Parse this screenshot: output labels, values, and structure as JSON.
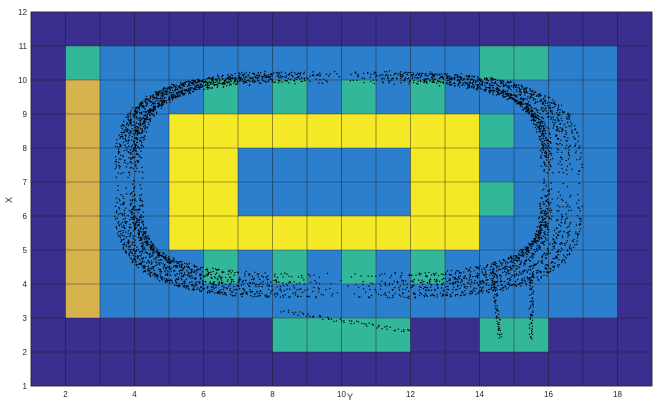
{
  "chart_data": {
    "type": "heatmap",
    "title": "",
    "xlabel": "Y",
    "ylabel": "X",
    "xlim": [
      1,
      19
    ],
    "ylim": [
      1,
      12
    ],
    "x_ticks": [
      "2",
      "4",
      "6",
      "8",
      "10",
      "12",
      "14",
      "16",
      "18"
    ],
    "y_ticks": [
      "1",
      "2",
      "3",
      "4",
      "5",
      "6",
      "7",
      "8",
      "9",
      "10",
      "11",
      "12"
    ],
    "grid": true,
    "palette": {
      "0": "#3a2f8e",
      "1": "#2c7fcd",
      "2": "#33b79a",
      "3": "#d7b34e",
      "4": "#f5e826"
    },
    "grid_levels": [
      [
        0,
        0,
        0,
        0,
        0,
        0,
        0,
        0,
        0,
        0,
        0,
        0,
        0,
        0,
        0,
        0,
        0,
        0
      ],
      [
        0,
        2,
        1,
        1,
        1,
        1,
        1,
        1,
        1,
        1,
        1,
        1,
        1,
        2,
        2,
        1,
        1,
        0
      ],
      [
        0,
        3,
        1,
        1,
        1,
        2,
        1,
        2,
        1,
        2,
        1,
        2,
        1,
        1,
        1,
        1,
        1,
        0
      ],
      [
        0,
        3,
        1,
        1,
        4,
        4,
        4,
        4,
        4,
        4,
        4,
        4,
        4,
        2,
        1,
        1,
        1,
        0
      ],
      [
        0,
        3,
        1,
        1,
        4,
        4,
        1,
        1,
        1,
        1,
        1,
        4,
        4,
        1,
        1,
        1,
        1,
        0
      ],
      [
        0,
        3,
        1,
        1,
        4,
        4,
        1,
        1,
        1,
        1,
        1,
        4,
        4,
        2,
        1,
        1,
        1,
        0
      ],
      [
        0,
        3,
        1,
        1,
        4,
        4,
        4,
        4,
        4,
        4,
        4,
        4,
        4,
        1,
        1,
        1,
        1,
        0
      ],
      [
        0,
        3,
        1,
        1,
        1,
        2,
        1,
        2,
        1,
        2,
        1,
        2,
        1,
        1,
        1,
        1,
        1,
        0
      ],
      [
        0,
        3,
        1,
        1,
        1,
        1,
        1,
        1,
        1,
        1,
        1,
        1,
        1,
        1,
        1,
        1,
        1,
        0
      ],
      [
        0,
        0,
        0,
        0,
        0,
        0,
        0,
        2,
        2,
        2,
        2,
        0,
        0,
        2,
        2,
        0,
        0,
        0
      ],
      [
        0,
        0,
        0,
        0,
        0,
        0,
        0,
        0,
        0,
        0,
        0,
        0,
        0,
        0,
        0,
        0,
        0,
        0
      ]
    ],
    "trajectories": [
      {
        "rx": 5.85,
        "ry": 3.0,
        "cx": 10.0,
        "cy": 7.05,
        "n": 1.0
      },
      {
        "rx": 6.05,
        "ry": 3.1,
        "cx": 10.0,
        "cy": 7.0,
        "n": 0.85
      },
      {
        "rx": 6.3,
        "ry": 3.2,
        "cx": 10.05,
        "cy": 6.98,
        "n": 0.75
      },
      {
        "rx": 6.5,
        "ry": 3.28,
        "cx": 10.1,
        "cy": 6.92,
        "n": 0.7
      },
      {
        "rx": 6.7,
        "ry": 3.25,
        "cx": 10.2,
        "cy": 6.9,
        "n": 0.65
      },
      {
        "rx": 6.0,
        "ry": 2.85,
        "cx": 9.95,
        "cy": 7.1,
        "n": 0.9
      }
    ],
    "point_color": "#000000"
  }
}
